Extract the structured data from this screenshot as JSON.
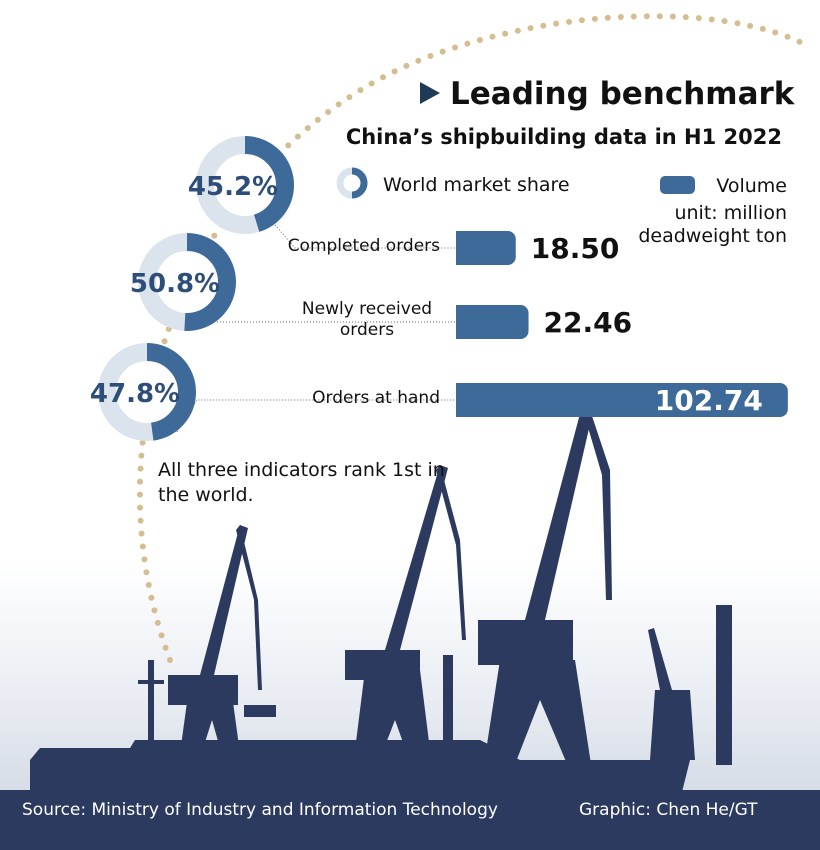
{
  "title": "Leading benchmark",
  "subtitle": "China’s shipbuilding data in H1 2022",
  "chart_data": [
    {
      "type": "donut",
      "name": "World market share",
      "color": "#3d6a98",
      "track_color": "#dbe4ec",
      "values": [
        45.2,
        50.8,
        47.8
      ],
      "value_labels": [
        "45.2%",
        "50.8%",
        "47.8%"
      ]
    },
    {
      "type": "bar",
      "name": "Volume",
      "unit": "unit: million deadweight ton",
      "color": "#3d6a98",
      "categories": [
        "Completed orders",
        "Newly received orders",
        "Orders at hand"
      ],
      "values": [
        18.5,
        22.46,
        102.74
      ],
      "value_labels": [
        "18.50",
        "22.46",
        "102.74"
      ]
    }
  ],
  "note": "All three indicators rank 1st in the world.",
  "source": "Source: Ministry of Industry and Information Technology",
  "credit": "Graphic: Chen He/GT"
}
